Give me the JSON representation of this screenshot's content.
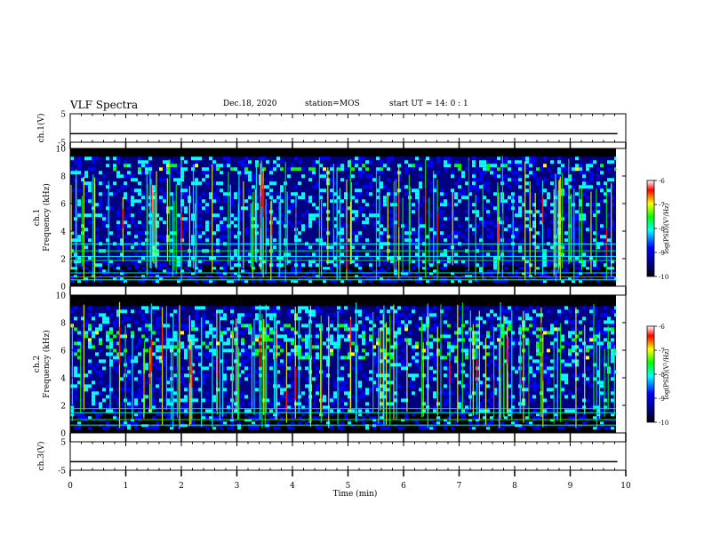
{
  "header": {
    "title": "VLF Spectra",
    "date": "Dec.18, 2020",
    "station": "station=MOS",
    "start": "start  UT =   14: 0  : 1"
  },
  "colors": {
    "black": "#000000",
    "navy": "#00007f",
    "blue": "#0000ff",
    "cyan": "#00ffff",
    "green": "#00ff00",
    "yellow": "#ffff00",
    "red": "#ff0000",
    "white": "#ffffff"
  },
  "chart_data": [
    {
      "type": "line",
      "ylabel": "ch.1(V)",
      "ylim": [
        -5,
        5
      ],
      "yticks": [
        "5",
        "-5"
      ],
      "xlim": [
        0,
        10
      ],
      "series": [
        {
          "x": [
            0,
            9.85
          ],
          "y": [
            -2,
            -2
          ]
        }
      ]
    },
    {
      "type": "heatmap",
      "ylabel": "ch.1  Frequency (kHz)",
      "ylim": [
        0,
        10
      ],
      "yticks": [
        "0",
        "2",
        "4",
        "6",
        "8",
        "10"
      ],
      "xlim": [
        0,
        10
      ],
      "data_extent_min": 9.85,
      "colorbar": {
        "label": "log(PSD)(V²/Hz)",
        "min": -10,
        "max": -6,
        "ticks": [
          "-6",
          "-7",
          "-8",
          "-9",
          "-10"
        ]
      },
      "features": {
        "emission_band_khz": [
          1.5,
          9.4
        ],
        "strong_band_khz": [
          8.5,
          9.0
        ],
        "hum_lines_khz": [
          0.5,
          0.7,
          1.0,
          1.9,
          2.2,
          2.6,
          3.1
        ]
      }
    },
    {
      "type": "heatmap",
      "ylabel": "ch.2  Frequency (kHz)",
      "ylim": [
        0,
        10
      ],
      "yticks": [
        "0",
        "2",
        "4",
        "6",
        "8",
        "10"
      ],
      "xlim": [
        0,
        10
      ],
      "data_extent_min": 9.85,
      "colorbar": {
        "label": "log(PSD)(V²/Hz)",
        "min": -10,
        "max": -6,
        "ticks": [
          "-6",
          "-7",
          "-8",
          "-9",
          "-10"
        ]
      },
      "features": {
        "emission_band_khz": [
          1.7,
          9.2
        ],
        "strong_band_khz": [
          5.5,
          8.0
        ],
        "hum_lines_khz": [
          0.6,
          1.0,
          1.5,
          1.8
        ]
      }
    },
    {
      "type": "line",
      "ylabel": "ch.3(V)",
      "ylim": [
        -5,
        5
      ],
      "yticks": [
        "5",
        "-5"
      ],
      "xlim": [
        0,
        10
      ],
      "series": [
        {
          "x": [
            0,
            9.85
          ],
          "y": [
            -2,
            -2
          ]
        }
      ]
    }
  ],
  "x_axis": {
    "xlabel": "Time (min)",
    "ticks": [
      "0",
      "1",
      "2",
      "3",
      "4",
      "5",
      "6",
      "7",
      "8",
      "9",
      "10"
    ]
  }
}
